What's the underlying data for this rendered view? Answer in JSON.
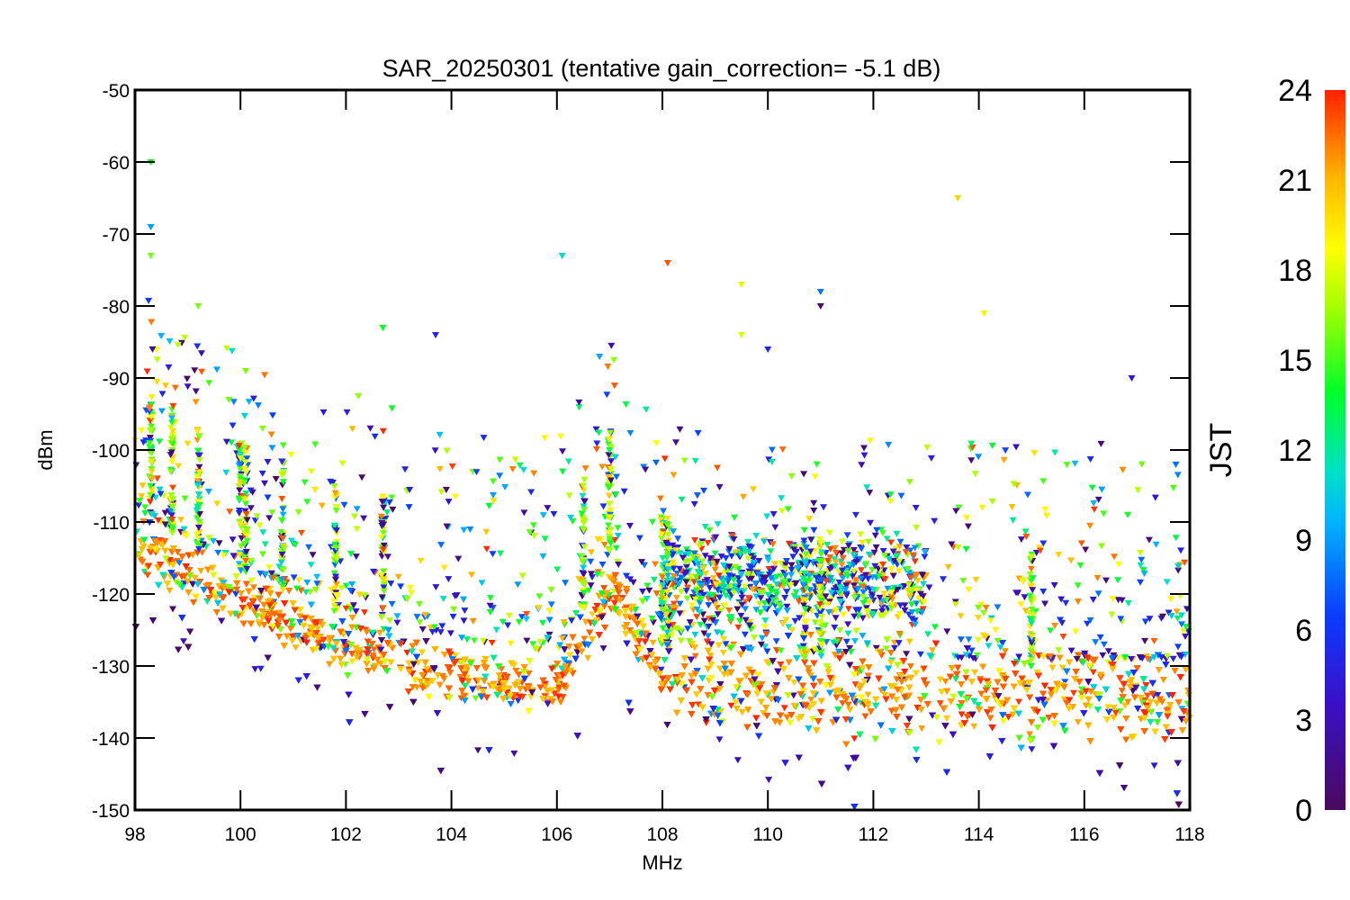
{
  "chart_data": {
    "type": "scatter",
    "title": "SAR_20250301 (tentative gain_correction= -5.1 dB)",
    "xlabel": "MHz",
    "ylabel": "dBm",
    "xlim": [
      98,
      118
    ],
    "ylim": [
      -150,
      -50
    ],
    "xticks": [
      98,
      100,
      102,
      104,
      106,
      108,
      110,
      112,
      114,
      116,
      118
    ],
    "yticks": [
      -50,
      -60,
      -70,
      -80,
      -90,
      -100,
      -110,
      -120,
      -130,
      -140,
      -150
    ],
    "grid": false,
    "colorbar": {
      "label": "JST",
      "range": [
        0,
        24
      ],
      "ticks": [
        0,
        3,
        6,
        9,
        12,
        15,
        18,
        21,
        24
      ],
      "colormap": "rainbow"
    },
    "noise_floor_trend": [
      {
        "x": 98,
        "y": -113
      },
      {
        "x": 100,
        "y": -121
      },
      {
        "x": 102,
        "y": -127
      },
      {
        "x": 104,
        "y": -131
      },
      {
        "x": 106,
        "y": -133
      },
      {
        "x": 107,
        "y": -119
      },
      {
        "x": 108,
        "y": -131
      },
      {
        "x": 110,
        "y": -133
      },
      {
        "x": 112,
        "y": -133
      },
      {
        "x": 114,
        "y": -134
      },
      {
        "x": 116,
        "y": -134
      },
      {
        "x": 118,
        "y": -134
      }
    ],
    "notable_points": [
      {
        "x": 98.3,
        "y": -60,
        "jst": 14
      },
      {
        "x": 98.3,
        "y": -73,
        "jst": 16
      },
      {
        "x": 98.3,
        "y": -69,
        "jst": 9
      },
      {
        "x": 99.2,
        "y": -80,
        "jst": 16
      },
      {
        "x": 100.1,
        "y": -89,
        "jst": 16
      },
      {
        "x": 102.7,
        "y": -83,
        "jst": 14
      },
      {
        "x": 103.7,
        "y": -84,
        "jst": 5
      },
      {
        "x": 106.1,
        "y": -73,
        "jst": 11
      },
      {
        "x": 108.1,
        "y": -74,
        "jst": 23
      },
      {
        "x": 109.5,
        "y": -77,
        "jst": 18
      },
      {
        "x": 109.5,
        "y": -84,
        "jst": 18
      },
      {
        "x": 110,
        "y": -86,
        "jst": 5
      },
      {
        "x": 111,
        "y": -78,
        "jst": 8
      },
      {
        "x": 111,
        "y": -80,
        "jst": 1
      },
      {
        "x": 113.6,
        "y": -65,
        "jst": 20
      },
      {
        "x": 114.1,
        "y": -81,
        "jst": 19
      },
      {
        "x": 116.9,
        "y": -90,
        "jst": 4
      },
      {
        "x": 114.9,
        "y": -112,
        "jst": 23
      }
    ]
  }
}
